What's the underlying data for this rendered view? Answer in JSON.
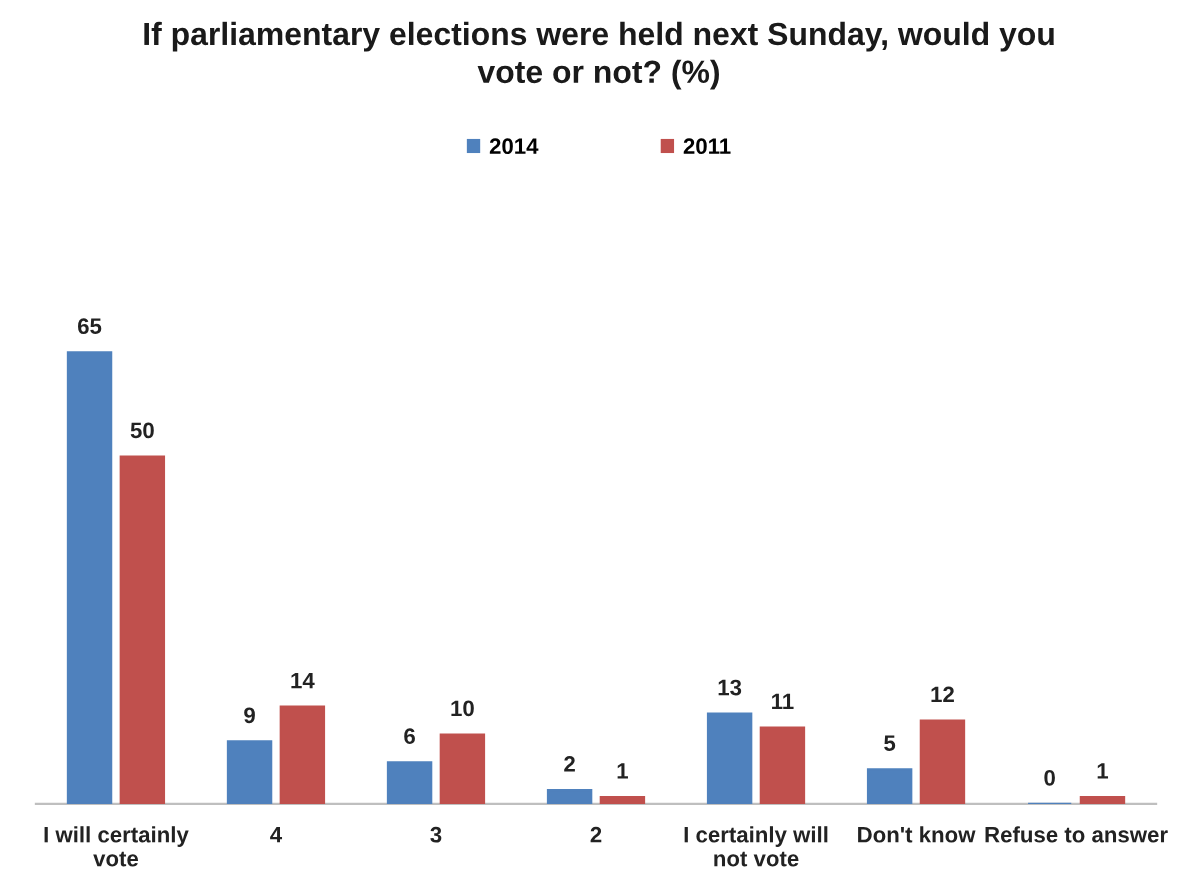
{
  "chart_data": {
    "type": "bar",
    "title": "If parliamentary elections were held next Sunday, would you vote or not? (%)",
    "categories": [
      "I will certainly vote",
      "4",
      "3",
      "2",
      "I certainly will not vote",
      "Don't know",
      "Refuse to answer"
    ],
    "series": [
      {
        "name": "2014",
        "color": "#4f81bd",
        "values": [
          65,
          9,
          6,
          2,
          13,
          5,
          0
        ]
      },
      {
        "name": "2011",
        "color": "#c0504d",
        "values": [
          50,
          14,
          10,
          1,
          11,
          12,
          1
        ]
      }
    ],
    "data_labels": true,
    "legend": "top",
    "grid": false
  }
}
